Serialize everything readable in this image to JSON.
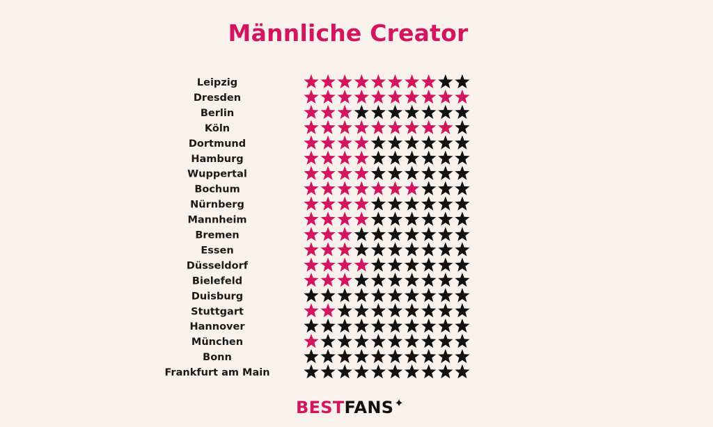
{
  "chart_data": {
    "type": "pictograph",
    "title": "Männliche Creator",
    "max_stars": 10,
    "categories": [
      "Leipzig",
      "Dresden",
      "Berlin",
      "Köln",
      "Dortmund",
      "Hamburg",
      "Wuppertal",
      "Bochum",
      "Nürnberg",
      "Mannheim",
      "Bremen",
      "Essen",
      "Düsseldorf",
      "Bielefeld",
      "Duisburg",
      "Stuttgart",
      "Hannover",
      "München",
      "Bonn",
      "Frankfurt am Main"
    ],
    "values": [
      8,
      10,
      3,
      9,
      4,
      4,
      4,
      7,
      4,
      4,
      3,
      3,
      4,
      3,
      0,
      2,
      0,
      1,
      0,
      0
    ]
  },
  "colors": {
    "highlight": "#d3155f",
    "base": "#111111",
    "title": "#d3155f",
    "background": "#f9f2ec"
  },
  "logo": {
    "best": "BEST",
    "fans": "FANS",
    "icon": "sparkle-icon",
    "glyph": "✦"
  }
}
